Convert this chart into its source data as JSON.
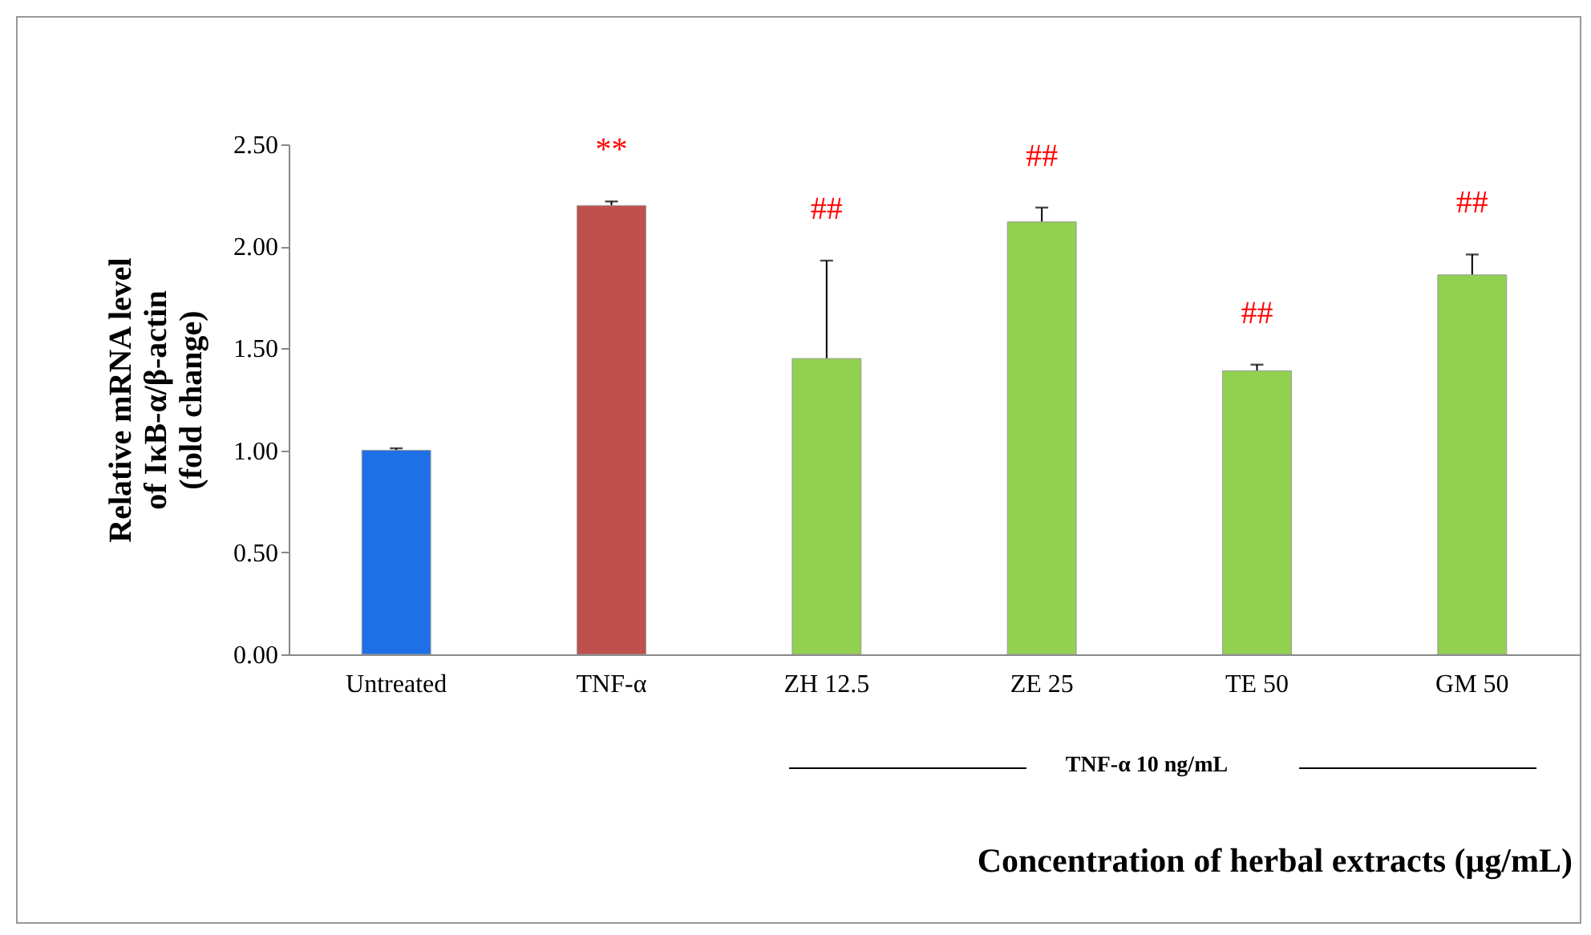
{
  "chart_data": {
    "type": "bar",
    "xlabel": "Concentration of herbal extracts (μg/mL)",
    "ylabel": "Relative mRNA level\nof IκB-α/β-actin\n(fold change)",
    "categories": [
      "Untreated",
      "TNF-α",
      "ZH 12.5",
      "ZE 25",
      "TE 50",
      "GM 50"
    ],
    "values": [
      1.0,
      2.2,
      1.45,
      2.12,
      1.39,
      1.86
    ],
    "errors": [
      0.01,
      0.02,
      0.48,
      0.07,
      0.03,
      0.1
    ],
    "colors": [
      "#1f6fe8",
      "#c0504d",
      "#92d050",
      "#92d050",
      "#92d050",
      "#92d050"
    ],
    "ylim": [
      0,
      2.5
    ],
    "yticks": [
      {
        "value": 0,
        "label": "0.00"
      },
      {
        "value": 0.5,
        "label": "0.50"
      },
      {
        "value": 1,
        "label": "1.00"
      },
      {
        "value": 1.5,
        "label": "1.50"
      },
      {
        "value": 2,
        "label": "2.00"
      },
      {
        "value": 2.5,
        "label": "2.50"
      }
    ],
    "annotations": [
      "**",
      "##",
      "##",
      "##",
      "##",
      "TNF-α 10 ng/mL"
    ],
    "grid": false
  }
}
